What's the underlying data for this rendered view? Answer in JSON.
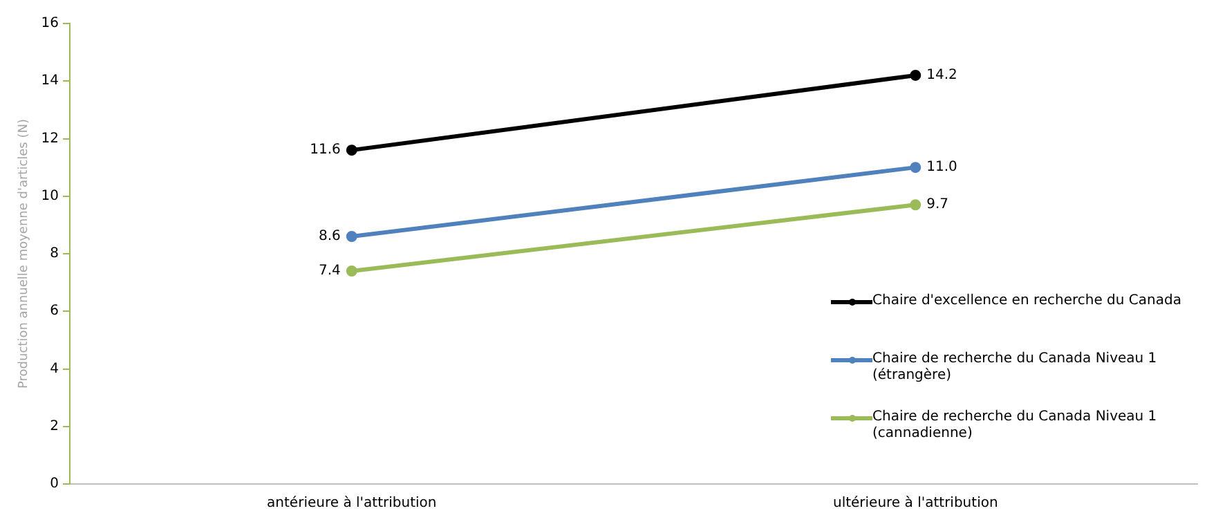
{
  "chart_data": {
    "type": "line",
    "ylabel": "Production annuelle moyenne d'articles (N)",
    "categories": [
      "antérieure à l'attribution",
      "ultérieure à l'attribution"
    ],
    "series": [
      {
        "name": "Chaire d'excellence en recherche du Canada",
        "color": "#000000",
        "values": [
          11.6,
          14.2
        ],
        "value_labels": [
          "11.6",
          "14.2"
        ]
      },
      {
        "name": "Chaire de recherche du Canada Niveau 1 (étrangère)",
        "color": "#4f81bd",
        "values": [
          8.6,
          11.0
        ],
        "value_labels": [
          "8.6",
          "11.0"
        ]
      },
      {
        "name": "Chaire de recherche du Canada Niveau 1 (cannadienne)",
        "color": "#9bbb59",
        "values": [
          7.4,
          9.7
        ],
        "value_labels": [
          "7.4",
          "9.7"
        ]
      }
    ],
    "ylim": [
      0,
      16
    ],
    "yticks": [
      0,
      2,
      4,
      6,
      8,
      10,
      12,
      14,
      16
    ],
    "grid": false,
    "legend": "right",
    "marker": "circle",
    "line_style": "solid"
  }
}
